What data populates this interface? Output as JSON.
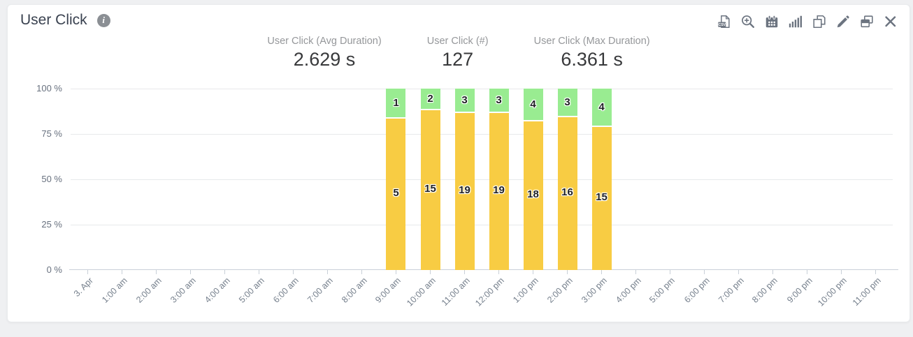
{
  "header": {
    "title": "User Click",
    "info_glyph": "i"
  },
  "toolbar": {
    "csv_label": "CSV",
    "icons": [
      "csv-export-icon",
      "zoom-in-icon",
      "calendar-icon",
      "bar-chart-icon",
      "copy-icon",
      "edit-icon",
      "compare-windows-icon",
      "close-icon"
    ]
  },
  "stats": [
    {
      "label": "User Click (Avg Duration)",
      "value": "2.629 s"
    },
    {
      "label": "User Click (#)",
      "value": "127"
    },
    {
      "label": "User Click (Max Duration)",
      "value": "6.361 s"
    }
  ],
  "chart_data": {
    "type": "bar",
    "stacked": true,
    "value_mode": "percent_of_row_total",
    "title": "User Click",
    "categories": [
      "3. Apr",
      "1:00 am",
      "2:00 am",
      "3:00 am",
      "4:00 am",
      "5:00 am",
      "6:00 am",
      "7:00 am",
      "8:00 am",
      "9:00 am",
      "10:00 am",
      "11:00 am",
      "12:00 pm",
      "1:00 pm",
      "2:00 pm",
      "3:00 pm",
      "4:00 pm",
      "5:00 pm",
      "6:00 pm",
      "7:00 pm",
      "8:00 pm",
      "9:00 pm",
      "10:00 pm",
      "11:00 pm"
    ],
    "series": [
      {
        "name": "yellow",
        "color": "#f8cc43",
        "values": [
          null,
          null,
          null,
          null,
          null,
          null,
          null,
          null,
          null,
          5,
          15,
          19,
          19,
          18,
          16,
          15,
          null,
          null,
          null,
          null,
          null,
          null,
          null,
          null
        ]
      },
      {
        "name": "green",
        "color": "#99ec91",
        "values": [
          null,
          null,
          null,
          null,
          null,
          null,
          null,
          null,
          null,
          1,
          2,
          3,
          3,
          4,
          3,
          4,
          null,
          null,
          null,
          null,
          null,
          null,
          null,
          null
        ]
      }
    ],
    "ylim": [
      0,
      100
    ],
    "y_ticks": [
      0,
      25,
      50,
      75,
      100
    ],
    "y_tick_labels": [
      "0 %",
      "25 %",
      "50 %",
      "75 %",
      "100 %"
    ],
    "grid": true,
    "legend": false
  },
  "colors": {
    "accent_yellow": "#f8cc43",
    "accent_green": "#99ec91",
    "axis": "#c9d0d8"
  }
}
